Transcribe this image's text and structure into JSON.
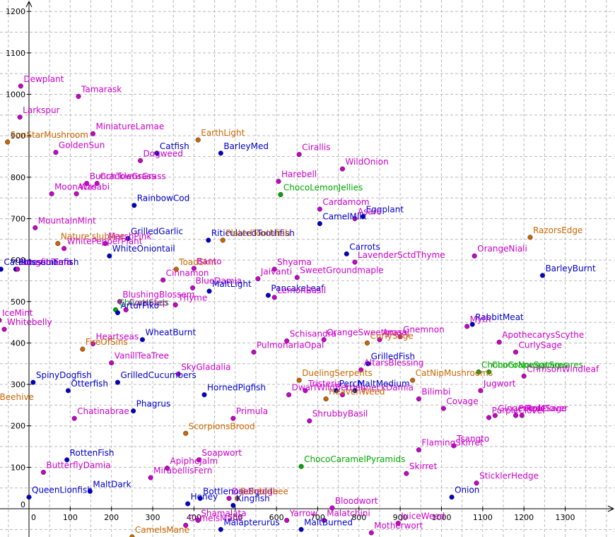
{
  "chart_data": {
    "type": "scatter",
    "title": "",
    "xlabel": "",
    "ylabel": "",
    "xlim": [
      -80,
      1400
    ],
    "ylim": [
      -70,
      1220
    ],
    "grid": true,
    "x_ticks": [
      "0",
      "100",
      "200",
      "300",
      "400",
      "500",
      "600",
      "700",
      "800",
      "900",
      "1000",
      "1100",
      "1200",
      "1300"
    ],
    "y_ticks": [
      "0",
      "100",
      "200",
      "300",
      "400",
      "500",
      "600",
      "700",
      "800",
      "900",
      "1000",
      "1100",
      "1200"
    ],
    "colors": {
      "magenta": "#cc00cc",
      "blue": "#0000cc",
      "orange": "#cc6600",
      "green": "#00aa00",
      "grid": "#bbbbbb"
    },
    "points": [
      {
        "label": "Dewplant",
        "x": -20,
        "y": 1020,
        "color": "magenta"
      },
      {
        "label": "Tamarask",
        "x": 120,
        "y": 995,
        "color": "magenta"
      },
      {
        "label": "Larkspur",
        "x": -22,
        "y": 945,
        "color": "magenta"
      },
      {
        "label": "MiniatureLamae",
        "x": 155,
        "y": 905,
        "color": "magenta"
      },
      {
        "label": "SunStarMushroom",
        "x": -52,
        "y": 885,
        "color": "orange"
      },
      {
        "label": "EarthLight",
        "x": 410,
        "y": 890,
        "color": "orange"
      },
      {
        "label": "GoldenSun",
        "x": 65,
        "y": 860,
        "color": "magenta"
      },
      {
        "label": "Catfish",
        "x": 310,
        "y": 858,
        "color": "blue"
      },
      {
        "label": "Dogweed",
        "x": 270,
        "y": 840,
        "color": "magenta"
      },
      {
        "label": "BarleyMed",
        "x": 465,
        "y": 858,
        "color": "blue"
      },
      {
        "label": "Cirallis",
        "x": 655,
        "y": 855,
        "color": "magenta"
      },
      {
        "label": "WildOnion",
        "x": 760,
        "y": 820,
        "color": "magenta"
      },
      {
        "label": "BunchTownsGrass",
        "x": 140,
        "y": 785,
        "color": "magenta"
      },
      {
        "label": "CrackleGrass",
        "x": 165,
        "y": 785,
        "color": "magenta"
      },
      {
        "label": "Harebell",
        "x": 605,
        "y": 790,
        "color": "magenta"
      },
      {
        "label": "MoonAcre",
        "x": 55,
        "y": 760,
        "color": "magenta"
      },
      {
        "label": "Wasabi",
        "x": 115,
        "y": 760,
        "color": "magenta"
      },
      {
        "label": "ChocoLemonJellies",
        "x": 610,
        "y": 758,
        "color": "green"
      },
      {
        "label": "RainbowCod",
        "x": 255,
        "y": 732,
        "color": "blue"
      },
      {
        "label": "Cardamom",
        "x": 705,
        "y": 723,
        "color": "magenta"
      },
      {
        "label": "Eggplant",
        "x": 810,
        "y": 705,
        "color": "blue"
      },
      {
        "label": "Asaro",
        "x": 790,
        "y": 700,
        "color": "magenta"
      },
      {
        "label": "CamelMilk",
        "x": 705,
        "y": 688,
        "color": "blue"
      },
      {
        "label": "MountainMint",
        "x": 15,
        "y": 678,
        "color": "magenta"
      },
      {
        "label": "RazorsEdge",
        "x": 1215,
        "y": 655,
        "color": "orange"
      },
      {
        "label": "GrilledGarlic",
        "x": 240,
        "y": 652,
        "color": "blue"
      },
      {
        "label": "Nature'sJubilee",
        "x": 70,
        "y": 640,
        "color": "orange"
      },
      {
        "label": "MarshPink",
        "x": 185,
        "y": 640,
        "color": "magenta"
      },
      {
        "label": "WhitePepperPlant",
        "x": 85,
        "y": 628,
        "color": "magenta"
      },
      {
        "label": "RiticulatedToothfish",
        "x": 435,
        "y": 648,
        "color": "blue"
      },
      {
        "label": "PlatedToothfish",
        "x": 470,
        "y": 648,
        "color": "orange"
      },
      {
        "label": "WhiteOniontail",
        "x": 195,
        "y": 610,
        "color": "blue"
      },
      {
        "label": "Carrots",
        "x": 770,
        "y": 615,
        "color": "blue"
      },
      {
        "label": "OrangeNiali",
        "x": 1080,
        "y": 610,
        "color": "magenta"
      },
      {
        "label": "LavenderSctdThyme",
        "x": 790,
        "y": 595,
        "color": "magenta"
      },
      {
        "label": "CatBlossomFern",
        "x": -68,
        "y": 578,
        "color": "blue"
      },
      {
        "label": "PotessLionfish",
        "x": -32,
        "y": 578,
        "color": "blue"
      },
      {
        "label": "LongfinTuna",
        "x": -28,
        "y": 578,
        "color": "magenta"
      },
      {
        "label": "ToadSkin",
        "x": 357,
        "y": 578,
        "color": "orange"
      },
      {
        "label": "Banto",
        "x": 400,
        "y": 580,
        "color": "magenta"
      },
      {
        "label": "Shyama",
        "x": 595,
        "y": 578,
        "color": "magenta"
      },
      {
        "label": "BarleyBurnt",
        "x": 1245,
        "y": 563,
        "color": "blue"
      },
      {
        "label": "Cinnamon",
        "x": 325,
        "y": 552,
        "color": "magenta"
      },
      {
        "label": "Jaivanti",
        "x": 555,
        "y": 555,
        "color": "magenta"
      },
      {
        "label": "SweetGroundmaple",
        "x": 650,
        "y": 558,
        "color": "magenta"
      },
      {
        "label": "BlueDamia",
        "x": 397,
        "y": 533,
        "color": "magenta"
      },
      {
        "label": "MaltLight",
        "x": 437,
        "y": 525,
        "color": "blue"
      },
      {
        "label": "PancakeLeaf",
        "x": 580,
        "y": 515,
        "color": "blue"
      },
      {
        "label": "LemonBasil",
        "x": 595,
        "y": 510,
        "color": "magenta"
      },
      {
        "label": "BlushingBlossem",
        "x": 220,
        "y": 500,
        "color": "magenta"
      },
      {
        "label": "Thyme",
        "x": 355,
        "y": 492,
        "color": "magenta"
      },
      {
        "label": "ChiveHeads",
        "x": 210,
        "y": 480,
        "color": "green"
      },
      {
        "label": "CornStep",
        "x": 235,
        "y": 480,
        "color": "magenta"
      },
      {
        "label": "ArturPiko",
        "x": 215,
        "y": 473,
        "color": "blue"
      },
      {
        "label": "IceMint",
        "x": -72,
        "y": 455,
        "color": "magenta"
      },
      {
        "label": "RabbitMeat",
        "x": 1075,
        "y": 445,
        "color": "blue"
      },
      {
        "label": "Myth",
        "x": 1062,
        "y": 440,
        "color": "magenta"
      },
      {
        "label": "Whitebelly",
        "x": -60,
        "y": 433,
        "color": "magenta"
      },
      {
        "label": "Gnemnon",
        "x": 900,
        "y": 415,
        "color": "magenta"
      },
      {
        "label": "WheatBurnt",
        "x": 275,
        "y": 408,
        "color": "blue"
      },
      {
        "label": "Schisandra",
        "x": 625,
        "y": 405,
        "color": "magenta"
      },
      {
        "label": "OrangeSweetgrass",
        "x": 715,
        "y": 408,
        "color": "magenta"
      },
      {
        "label": "Amaaj",
        "x": 850,
        "y": 408,
        "color": "magenta"
      },
      {
        "label": "CurlySage",
        "x": 820,
        "y": 400,
        "color": "orange"
      },
      {
        "label": "ApothecarysScythe",
        "x": 1140,
        "y": 402,
        "color": "magenta"
      },
      {
        "label": "Heartseas",
        "x": 155,
        "y": 398,
        "color": "magenta"
      },
      {
        "label": "PulmonariaOpal",
        "x": 545,
        "y": 378,
        "color": "magenta"
      },
      {
        "label": "CurlySage",
        "x": 1180,
        "y": 378,
        "color": "magenta"
      },
      {
        "label": "FireOfSins",
        "x": 130,
        "y": 385,
        "color": "orange"
      },
      {
        "label": "VanillTeaTree",
        "x": 200,
        "y": 352,
        "color": "magenta"
      },
      {
        "label": "GrilledFish",
        "x": 822,
        "y": 350,
        "color": "blue"
      },
      {
        "label": "AltarsBlessing",
        "x": 805,
        "y": 335,
        "color": "magenta"
      },
      {
        "label": "ChocoNougatSquares",
        "x": 1115,
        "y": 330,
        "color": "green"
      },
      {
        "label": "ChocoGrapeSquares",
        "x": 1090,
        "y": 330,
        "color": "green"
      },
      {
        "label": "CrimsonWindleaf",
        "x": 1200,
        "y": 320,
        "color": "magenta"
      },
      {
        "label": "SkyGladalia",
        "x": 362,
        "y": 325,
        "color": "magenta"
      },
      {
        "label": "DuelingSerpents",
        "x": 655,
        "y": 310,
        "color": "orange"
      },
      {
        "label": "CatNipMushrooms",
        "x": 930,
        "y": 310,
        "color": "orange"
      },
      {
        "label": "SpinyDogfish",
        "x": 10,
        "y": 305,
        "color": "blue"
      },
      {
        "label": "GrilledCucumbers",
        "x": 215,
        "y": 305,
        "color": "blue"
      },
      {
        "label": "Tristeria",
        "x": 670,
        "y": 285,
        "color": "magenta"
      },
      {
        "label": "Jugwort",
        "x": 1095,
        "y": 285,
        "color": "magenta"
      },
      {
        "label": "Otterfish",
        "x": 95,
        "y": 285,
        "color": "blue"
      },
      {
        "label": "DwarfWildBerries",
        "x": 630,
        "y": 275,
        "color": "magenta"
      },
      {
        "label": "Perch",
        "x": 745,
        "y": 285,
        "color": "blue"
      },
      {
        "label": "LongneckDamia",
        "x": 760,
        "y": 275,
        "color": "magenta"
      },
      {
        "label": "MaltMedium",
        "x": 790,
        "y": 285,
        "color": "blue"
      },
      {
        "label": "HornedPigfish",
        "x": 425,
        "y": 275,
        "color": "blue"
      },
      {
        "label": "HeavenWeed",
        "x": 720,
        "y": 265,
        "color": "orange"
      },
      {
        "label": "Bilimbi",
        "x": 945,
        "y": 265,
        "color": "magenta"
      },
      {
        "label": "Beehive",
        "x": -78,
        "y": 252,
        "color": "orange"
      },
      {
        "label": "Covage",
        "x": 1005,
        "y": 242,
        "color": "magenta"
      },
      {
        "label": "Phagrus",
        "x": 253,
        "y": 236,
        "color": "blue"
      },
      {
        "label": "Chatinabrae",
        "x": 110,
        "y": 218,
        "color": "magenta"
      },
      {
        "label": "Primula",
        "x": 495,
        "y": 218,
        "color": "magenta"
      },
      {
        "label": "ShrubbyBasil",
        "x": 680,
        "y": 212,
        "color": "magenta"
      },
      {
        "label": "PurpleClover",
        "x": 1115,
        "y": 220,
        "color": "magenta"
      },
      {
        "label": "GingerRoot",
        "x": 1130,
        "y": 225,
        "color": "magenta"
      },
      {
        "label": "PurpleSage",
        "x": 1180,
        "y": 225,
        "color": "magenta"
      },
      {
        "label": "RedClover",
        "x": 1195,
        "y": 225,
        "color": "magenta"
      },
      {
        "label": "ScorpionsBrood",
        "x": 380,
        "y": 182,
        "color": "orange"
      },
      {
        "label": "FlamingSkirret",
        "x": 945,
        "y": 142,
        "color": "magenta"
      },
      {
        "label": "Tsangto",
        "x": 1030,
        "y": 152,
        "color": "magenta"
      },
      {
        "label": "RottenFish",
        "x": 92,
        "y": 118,
        "color": "blue"
      },
      {
        "label": "Soapwort",
        "x": 412,
        "y": 118,
        "color": "magenta"
      },
      {
        "label": "ChocoCaramelPyramids",
        "x": 660,
        "y": 102,
        "color": "green"
      },
      {
        "label": "ApipheJalm",
        "x": 335,
        "y": 98,
        "color": "magenta"
      },
      {
        "label": "ButterflyDamia",
        "x": 35,
        "y": 88,
        "color": "magenta"
      },
      {
        "label": "Skirret",
        "x": 915,
        "y": 85,
        "color": "magenta"
      },
      {
        "label": "MirabellisFern",
        "x": 295,
        "y": 75,
        "color": "magenta"
      },
      {
        "label": "SticklerHedge",
        "x": 1085,
        "y": 62,
        "color": "magenta"
      },
      {
        "label": "MaltDark",
        "x": 148,
        "y": 42,
        "color": "blue"
      },
      {
        "label": "QueenLionfish",
        "x": 0,
        "y": 28,
        "color": "blue"
      },
      {
        "label": "Onion",
        "x": 1025,
        "y": 28,
        "color": "blue"
      },
      {
        "label": "BottlenoseSquid",
        "x": 415,
        "y": 25,
        "color": "blue"
      },
      {
        "label": "Dusthedge",
        "x": 485,
        "y": 25,
        "color": "magenta"
      },
      {
        "label": "Bumblebee",
        "x": 505,
        "y": 25,
        "color": "orange"
      },
      {
        "label": "Honey",
        "x": 385,
        "y": 12,
        "color": "blue"
      },
      {
        "label": "Kingfish",
        "x": 495,
        "y": 8,
        "color": "blue"
      },
      {
        "label": "Bloodwort",
        "x": 735,
        "y": 2,
        "color": "magenta"
      },
      {
        "label": "Yarrow",
        "x": 625,
        "y": -28,
        "color": "magenta"
      },
      {
        "label": "Malatchini",
        "x": 715,
        "y": -28,
        "color": "magenta"
      },
      {
        "label": "JuiceWeed",
        "x": 895,
        "y": -35,
        "color": "magenta"
      },
      {
        "label": "CamelsMane",
        "x": 380,
        "y": -40,
        "color": "magenta"
      },
      {
        "label": "Shamalata",
        "x": 410,
        "y": -28,
        "color": "magenta"
      },
      {
        "label": "Malapterurus",
        "x": 465,
        "y": -50,
        "color": "blue"
      },
      {
        "label": "MaltBurned",
        "x": 660,
        "y": -50,
        "color": "blue"
      },
      {
        "label": "Motherwort",
        "x": 830,
        "y": -58,
        "color": "magenta"
      },
      {
        "label": "CamelsMane",
        "x": 250,
        "y": -68,
        "color": "orange"
      }
    ]
  }
}
